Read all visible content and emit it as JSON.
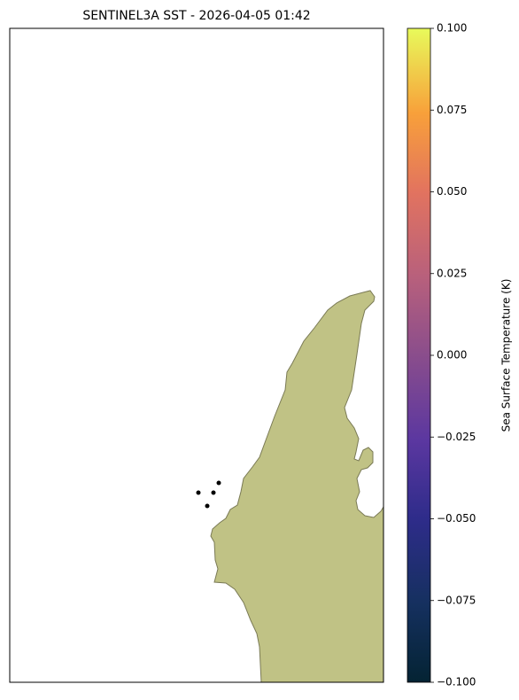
{
  "chart_data": {
    "type": "map",
    "title": "SENTINEL3A SST - 2026-04-05 01:42",
    "colorbar": {
      "label": "Sea Surface Temperature (K)",
      "ylim": [
        -0.1,
        0.1
      ],
      "yticks": [
        {
          "value": -0.1,
          "label": "−0.100"
        },
        {
          "value": -0.075,
          "label": "−0.075"
        },
        {
          "value": -0.05,
          "label": "−0.050"
        },
        {
          "value": -0.025,
          "label": "−0.025"
        },
        {
          "value": 0,
          "label": "0.000"
        },
        {
          "value": 0.025,
          "label": "0.025"
        },
        {
          "value": 0.05,
          "label": "0.050"
        },
        {
          "value": 0.075,
          "label": "0.075"
        },
        {
          "value": 0.1,
          "label": "0.100"
        }
      ]
    }
  }
}
